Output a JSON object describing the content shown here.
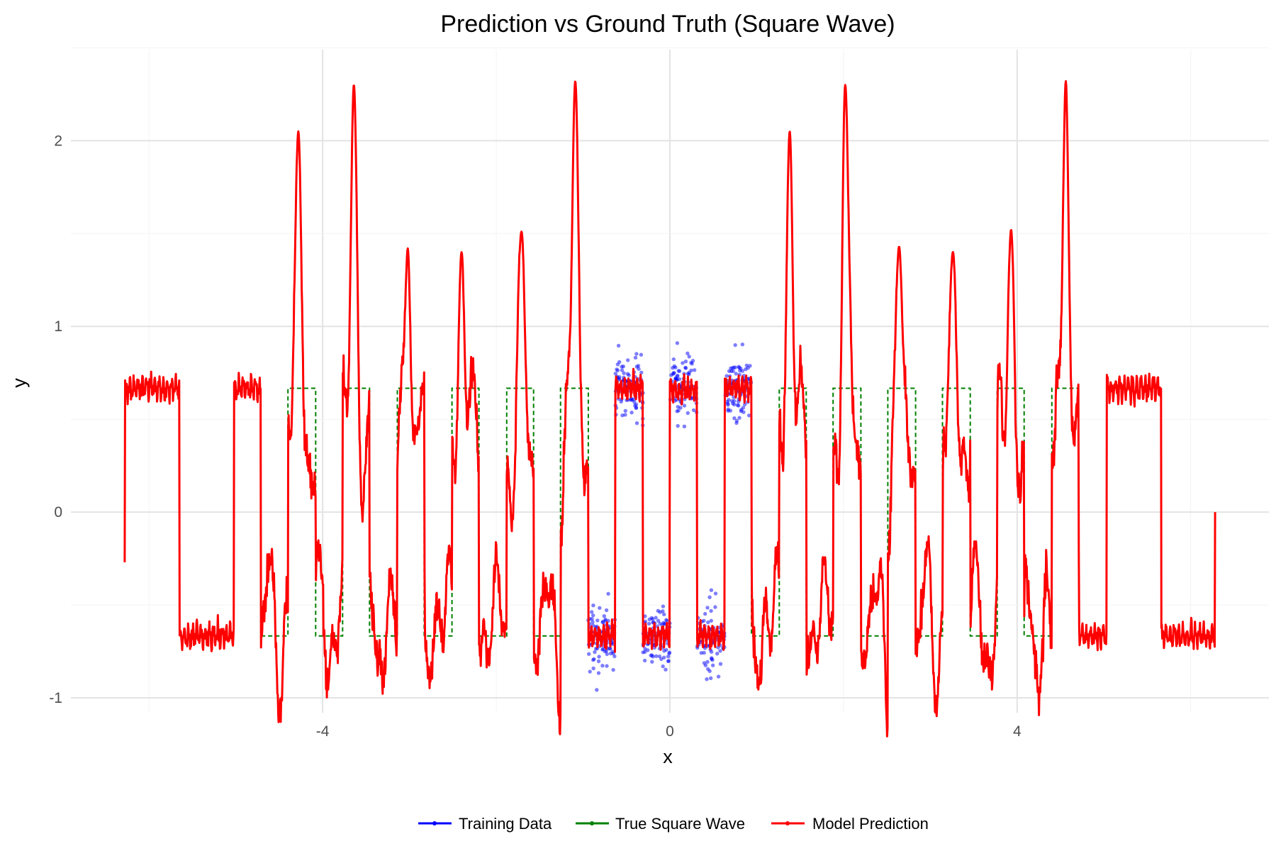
{
  "chart_data": {
    "type": "line",
    "title": "Prediction vs Ground Truth (Square Wave)",
    "xlabel": "x",
    "ylabel": "y",
    "xlim": [
      -6.9,
      6.9
    ],
    "ylim": [
      -1.08,
      2.49
    ],
    "x_ticks": [
      -4,
      0,
      4
    ],
    "x_tick_labels": [
      "-4",
      "0",
      "4"
    ],
    "y_ticks": [
      -1,
      0,
      1,
      2
    ],
    "y_tick_labels": [
      "-1",
      "0",
      "1",
      "2"
    ],
    "grid": true,
    "legend_position": "bottom",
    "legend": [
      {
        "label": "Training Data",
        "color": "#0000ff"
      },
      {
        "label": "True Square Wave",
        "color": "#008000"
      },
      {
        "label": "Model Prediction",
        "color": "#ff0000"
      }
    ],
    "series": [
      {
        "name": "True Square Wave",
        "style": "dashed-step",
        "color": "#008000",
        "amplitude": 0.667,
        "period": 0.6283,
        "x_range": [
          -4.71,
          4.71
        ],
        "high_intervals": [
          [
            -4.4,
            -4.08
          ],
          [
            -3.77,
            -3.46
          ],
          [
            -3.14,
            -2.83
          ],
          [
            -2.51,
            -2.2
          ],
          [
            -1.88,
            -1.57
          ],
          [
            -1.26,
            -0.94
          ],
          [
            -0.63,
            -0.31
          ],
          [
            0.0,
            0.31
          ],
          [
            0.63,
            0.94
          ],
          [
            1.26,
            1.57
          ],
          [
            1.88,
            2.2
          ],
          [
            2.51,
            2.83
          ],
          [
            3.14,
            3.46
          ],
          [
            3.77,
            4.08
          ],
          [
            4.4,
            4.71
          ]
        ]
      },
      {
        "name": "Training Data",
        "style": "scatter",
        "color": "#0000ff",
        "noise_sd": 0.09,
        "clusters": [
          {
            "x_range": [
              -0.94,
              -0.63
            ],
            "y_center": -0.667
          },
          {
            "x_range": [
              -0.63,
              -0.31
            ],
            "y_center": 0.667
          },
          {
            "x_range": [
              -0.31,
              0.0
            ],
            "y_center": -0.667
          },
          {
            "x_range": [
              0.0,
              0.31
            ],
            "y_center": 0.667
          },
          {
            "x_range": [
              0.31,
              0.63
            ],
            "y_center": -0.667
          },
          {
            "x_range": [
              0.63,
              0.94
            ],
            "y_center": 0.667
          }
        ]
      },
      {
        "name": "Model Prediction",
        "style": "line",
        "color": "#ff0000",
        "x_range": [
          -6.28,
          6.28
        ],
        "start_value": -0.27,
        "end_value": 0.0,
        "clean_level": 0.667,
        "peaks": [
          {
            "x": -4.28,
            "y": 2.05
          },
          {
            "x": -3.64,
            "y": 2.3
          },
          {
            "x": -3.02,
            "y": 1.42
          },
          {
            "x": -2.4,
            "y": 1.4
          },
          {
            "x": -1.71,
            "y": 1.51
          },
          {
            "x": -1.09,
            "y": 2.32
          },
          {
            "x": 1.38,
            "y": 2.05
          },
          {
            "x": 2.02,
            "y": 2.3
          },
          {
            "x": 2.64,
            "y": 1.43
          },
          {
            "x": 3.26,
            "y": 1.4
          },
          {
            "x": 3.93,
            "y": 1.52
          },
          {
            "x": 4.56,
            "y": 2.32
          }
        ]
      }
    ]
  }
}
